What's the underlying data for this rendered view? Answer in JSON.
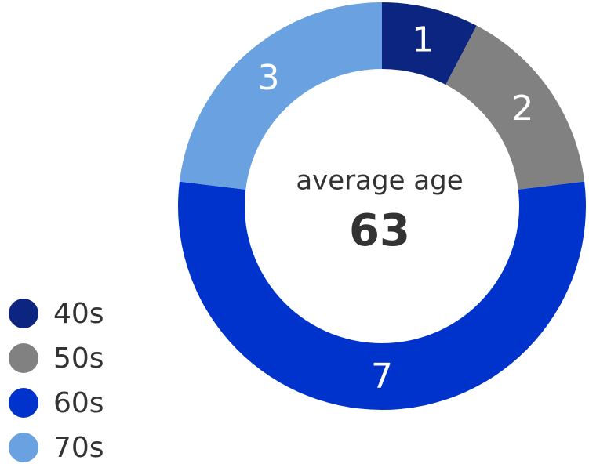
{
  "chart_data": {
    "type": "donut",
    "categories": [
      "40s",
      "50s",
      "60s",
      "70s"
    ],
    "values": [
      1,
      2,
      7,
      3
    ],
    "colors": [
      "#0c2580",
      "#818181",
      "#0033cc",
      "#69a1e1"
    ],
    "center_label": "average age",
    "center_value": 63,
    "legend": "bottom-left"
  }
}
